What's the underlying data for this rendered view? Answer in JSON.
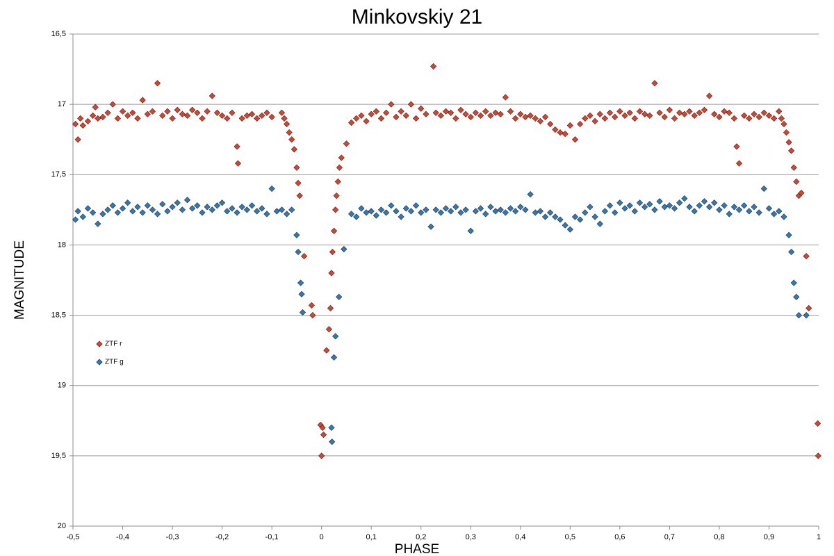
{
  "chart_data": {
    "type": "scatter",
    "title": "Minkovskiy 21",
    "x_label": "PHASE",
    "y_label": "MAGNITUDE",
    "xlim": [
      -0.5,
      1
    ],
    "ylim": [
      16.5,
      20
    ],
    "y_inverted": true,
    "grid": true,
    "legend": "left",
    "marker": "diamond",
    "xticks": [
      {
        "value": -0.5,
        "label": "-0,5"
      },
      {
        "value": -0.4,
        "label": "-0,4"
      },
      {
        "value": -0.3,
        "label": "-0,3"
      },
      {
        "value": -0.2,
        "label": "-0,2"
      },
      {
        "value": -0.1,
        "label": "-0,1"
      },
      0,
      {
        "value": 0.1,
        "label": "0,1"
      },
      {
        "value": 0.2,
        "label": "0,2"
      },
      {
        "value": 0.3,
        "label": "0,3"
      },
      {
        "value": 0.4,
        "label": "0,4"
      },
      {
        "value": 0.5,
        "label": "0,5"
      },
      {
        "value": 0.6,
        "label": "0,6"
      },
      {
        "value": 0.7,
        "label": "0,7"
      },
      {
        "value": 0.8,
        "label": "0,8"
      },
      {
        "value": 0.9,
        "label": "0,9"
      },
      1
    ],
    "yticks": [
      {
        "value": 16.5,
        "label": "16,5"
      },
      17,
      {
        "value": 17.5,
        "label": "17,5"
      },
      18,
      {
        "value": 18.5,
        "label": "18,5"
      },
      19,
      {
        "value": 19.5,
        "label": "19,5"
      },
      20
    ],
    "series": [
      {
        "name": "ZTF r",
        "color": "#d9432b",
        "x": [
          -0.495,
          -0.49,
          -0.485,
          -0.48,
          -0.47,
          -0.46,
          -0.455,
          -0.45,
          -0.44,
          -0.43,
          -0.42,
          -0.41,
          -0.4,
          -0.39,
          -0.38,
          -0.37,
          -0.36,
          -0.35,
          -0.34,
          -0.33,
          -0.32,
          -0.31,
          -0.3,
          -0.29,
          -0.28,
          -0.27,
          -0.26,
          -0.25,
          -0.24,
          -0.23,
          -0.22,
          -0.21,
          -0.2,
          -0.19,
          -0.18,
          -0.17,
          -0.168,
          -0.16,
          -0.15,
          -0.14,
          -0.13,
          -0.12,
          -0.11,
          -0.1,
          -0.08,
          -0.075,
          -0.07,
          -0.065,
          -0.06,
          -0.055,
          -0.05,
          -0.047,
          -0.044,
          -0.035,
          -0.02,
          -0.018,
          -0.002,
          0,
          0.002,
          0.004,
          0.01,
          0.015,
          0.018,
          0.02,
          0.022,
          0.025,
          0.028,
          0.03,
          0.033,
          0.036,
          0.04,
          0.05,
          0.06,
          0.07,
          0.08,
          0.09,
          0.1,
          0.11,
          0.12,
          0.13,
          0.14,
          0.15,
          0.16,
          0.17,
          0.18,
          0.19,
          0.2,
          0.21,
          0.225,
          0.23,
          0.24,
          0.25,
          0.26,
          0.27,
          0.28,
          0.29,
          0.3,
          0.31,
          0.32,
          0.33,
          0.34,
          0.35,
          0.36,
          0.37,
          0.38,
          0.39,
          0.4,
          0.41,
          0.42,
          0.43,
          0.44,
          0.45,
          0.46,
          0.47,
          0.48,
          0.49,
          0.5,
          0.51,
          0.52,
          0.53,
          0.54,
          0.55,
          0.56,
          0.57,
          0.58,
          0.59,
          0.6,
          0.61,
          0.62,
          0.63,
          0.64,
          0.65,
          0.66,
          0.67,
          0.68,
          0.69,
          0.7,
          0.71,
          0.72,
          0.73,
          0.74,
          0.75,
          0.76,
          0.77,
          0.78,
          0.79,
          0.8,
          0.81,
          0.82,
          0.83,
          0.835,
          0.84,
          0.85,
          0.86,
          0.87,
          0.88,
          0.89,
          0.9,
          0.91,
          0.92,
          0.925,
          0.93,
          0.935,
          0.94,
          0.945,
          0.95,
          0.955,
          0.96,
          0.965,
          0.975,
          0.98,
          0.998,
          0.999
        ],
        "values": [
          17.14,
          17.25,
          17.1,
          17.15,
          17.12,
          17.08,
          17.02,
          17.1,
          17.09,
          17.06,
          17.0,
          17.1,
          17.05,
          17.08,
          17.06,
          17.1,
          16.97,
          17.07,
          17.05,
          16.85,
          17.08,
          17.05,
          17.1,
          17.04,
          17.07,
          17.08,
          17.04,
          17.06,
          17.1,
          17.05,
          16.94,
          17.06,
          17.08,
          17.1,
          17.06,
          17.3,
          17.42,
          17.1,
          17.08,
          17.07,
          17.1,
          17.08,
          17.06,
          17.09,
          17.06,
          17.1,
          17.14,
          17.2,
          17.25,
          17.32,
          17.45,
          17.56,
          17.65,
          18.08,
          18.43,
          18.5,
          19.28,
          19.5,
          19.3,
          19.35,
          18.75,
          18.6,
          18.45,
          18.2,
          18.05,
          17.9,
          17.75,
          17.65,
          17.55,
          17.45,
          17.38,
          17.28,
          17.13,
          17.1,
          17.08,
          17.12,
          17.07,
          17.05,
          17.1,
          17.06,
          17.0,
          17.09,
          17.05,
          17.08,
          17.0,
          17.1,
          17.03,
          17.07,
          16.73,
          17.06,
          17.08,
          17.05,
          17.06,
          17.1,
          17.04,
          17.07,
          17.09,
          17.06,
          17.08,
          17.05,
          17.08,
          17.06,
          17.07,
          16.95,
          17.05,
          17.1,
          17.07,
          17.09,
          17.08,
          17.1,
          17.12,
          17.09,
          17.14,
          17.18,
          17.2,
          17.21,
          17.15,
          17.25,
          17.14,
          17.1,
          17.08,
          17.12,
          17.07,
          17.1,
          17.06,
          17.09,
          17.05,
          17.08,
          17.06,
          17.1,
          17.05,
          17.07,
          17.08,
          16.85,
          17.06,
          17.09,
          17.04,
          17.1,
          17.06,
          17.07,
          17.05,
          17.08,
          17.06,
          17.04,
          16.94,
          17.07,
          17.09,
          17.05,
          17.06,
          17.1,
          17.3,
          17.42,
          17.08,
          17.1,
          17.07,
          17.09,
          17.06,
          17.08,
          17.1,
          17.05,
          17.1,
          17.14,
          17.2,
          17.27,
          17.33,
          17.45,
          17.55,
          17.65,
          17.63,
          18.08,
          18.45,
          19.27,
          19.5
        ]
      },
      {
        "name": "ZTF g",
        "color": "#2b7bba",
        "x": [
          -0.495,
          -0.49,
          -0.48,
          -0.47,
          -0.46,
          -0.45,
          -0.44,
          -0.43,
          -0.42,
          -0.41,
          -0.4,
          -0.39,
          -0.38,
          -0.37,
          -0.36,
          -0.35,
          -0.34,
          -0.33,
          -0.32,
          -0.31,
          -0.3,
          -0.29,
          -0.28,
          -0.27,
          -0.26,
          -0.25,
          -0.24,
          -0.23,
          -0.22,
          -0.21,
          -0.2,
          -0.19,
          -0.18,
          -0.17,
          -0.16,
          -0.15,
          -0.14,
          -0.13,
          -0.12,
          -0.11,
          -0.1,
          -0.09,
          -0.08,
          -0.07,
          -0.06,
          -0.05,
          -0.047,
          -0.042,
          -0.04,
          -0.038,
          0.02,
          0.021,
          0.025,
          0.028,
          0.035,
          0.045,
          0.06,
          0.07,
          0.08,
          0.09,
          0.1,
          0.11,
          0.12,
          0.13,
          0.14,
          0.15,
          0.16,
          0.17,
          0.18,
          0.19,
          0.2,
          0.21,
          0.22,
          0.23,
          0.24,
          0.25,
          0.26,
          0.27,
          0.28,
          0.29,
          0.3,
          0.31,
          0.32,
          0.33,
          0.34,
          0.35,
          0.36,
          0.37,
          0.38,
          0.39,
          0.4,
          0.41,
          0.42,
          0.43,
          0.44,
          0.45,
          0.46,
          0.47,
          0.48,
          0.49,
          0.5,
          0.51,
          0.52,
          0.53,
          0.54,
          0.55,
          0.56,
          0.57,
          0.58,
          0.59,
          0.6,
          0.61,
          0.62,
          0.63,
          0.64,
          0.65,
          0.66,
          0.67,
          0.68,
          0.69,
          0.7,
          0.71,
          0.72,
          0.73,
          0.74,
          0.75,
          0.76,
          0.77,
          0.78,
          0.79,
          0.8,
          0.81,
          0.82,
          0.83,
          0.84,
          0.85,
          0.86,
          0.87,
          0.88,
          0.89,
          0.9,
          0.91,
          0.92,
          0.93,
          0.94,
          0.945,
          0.95,
          0.955,
          0.96,
          0.975
        ],
        "values": [
          17.82,
          17.76,
          17.8,
          17.74,
          17.77,
          17.85,
          17.78,
          17.75,
          17.72,
          17.77,
          17.74,
          17.7,
          17.76,
          17.73,
          17.77,
          17.72,
          17.75,
          17.78,
          17.71,
          17.76,
          17.73,
          17.7,
          17.75,
          17.68,
          17.74,
          17.72,
          17.77,
          17.73,
          17.75,
          17.72,
          17.7,
          17.76,
          17.74,
          17.77,
          17.73,
          17.75,
          17.72,
          17.76,
          17.74,
          17.78,
          17.6,
          17.76,
          17.75,
          17.78,
          17.75,
          17.93,
          18.05,
          18.27,
          18.35,
          18.48,
          19.3,
          19.4,
          18.8,
          18.65,
          18.37,
          18.03,
          17.78,
          17.8,
          17.74,
          17.77,
          17.76,
          17.79,
          17.75,
          17.77,
          17.72,
          17.76,
          17.8,
          17.74,
          17.76,
          17.72,
          17.77,
          17.75,
          17.87,
          17.75,
          17.77,
          17.74,
          17.76,
          17.73,
          17.77,
          17.75,
          17.9,
          17.76,
          17.74,
          17.78,
          17.73,
          17.76,
          17.75,
          17.77,
          17.74,
          17.76,
          17.73,
          17.75,
          17.64,
          17.77,
          17.76,
          17.8,
          17.77,
          17.8,
          17.82,
          17.86,
          17.89,
          17.8,
          17.82,
          17.77,
          17.73,
          17.8,
          17.85,
          17.76,
          17.72,
          17.77,
          17.7,
          17.74,
          17.72,
          17.76,
          17.7,
          17.73,
          17.71,
          17.75,
          17.69,
          17.73,
          17.72,
          17.74,
          17.7,
          17.67,
          17.73,
          17.76,
          17.72,
          17.69,
          17.73,
          17.7,
          17.75,
          17.72,
          17.78,
          17.73,
          17.75,
          17.72,
          17.76,
          17.73,
          17.77,
          17.6,
          17.74,
          17.78,
          17.76,
          17.8,
          17.93,
          18.05,
          18.27,
          18.37,
          18.5,
          18.5
        ]
      }
    ]
  }
}
